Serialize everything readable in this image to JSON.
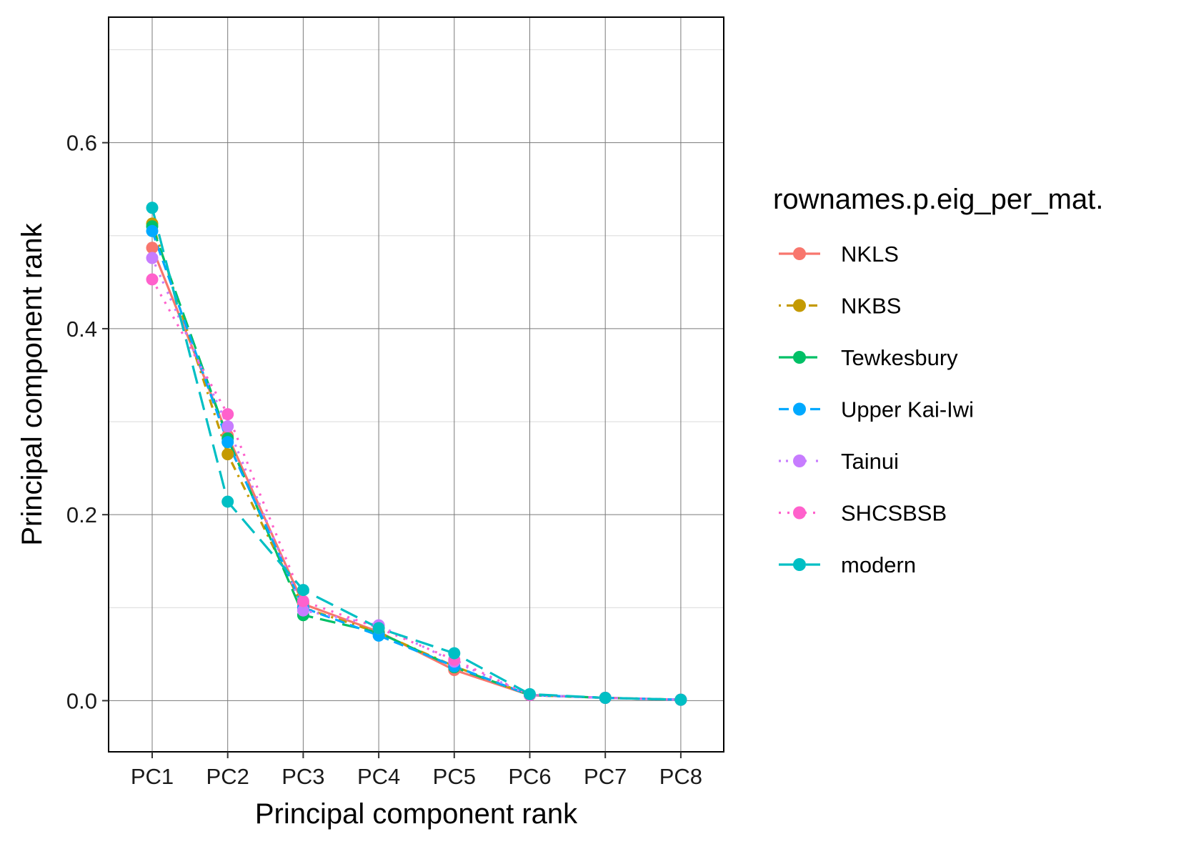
{
  "chart_data": {
    "type": "line",
    "title": "",
    "xlabel": "Principal component rank",
    "ylabel": "Principal component rank",
    "categories": [
      "PC1",
      "PC2",
      "PC3",
      "PC4",
      "PC5",
      "PC6",
      "PC7",
      "PC8"
    ],
    "ylim": [
      -0.055,
      0.735
    ],
    "yticks": [
      0.0,
      0.2,
      0.4,
      0.6
    ],
    "ytick_labels": [
      "0.0",
      "0.2",
      "0.4",
      "0.6"
    ],
    "grid": true,
    "legend": {
      "title": "rownames.p.eig_per_mat.",
      "position": "right"
    },
    "series": [
      {
        "name": "NKLS",
        "color": "#F8766D",
        "dash": "solid",
        "values": [
          0.487,
          0.285,
          0.104,
          0.074,
          0.033,
          0.006,
          0.003,
          0.001
        ]
      },
      {
        "name": "NKBS",
        "color": "#C49A00",
        "dash": "dotdash",
        "values": [
          0.513,
          0.265,
          0.1,
          0.073,
          0.037,
          0.006,
          0.003,
          0.001
        ]
      },
      {
        "name": "Tewkesbury",
        "color": "#00C066",
        "dash": "longdash",
        "values": [
          0.51,
          0.282,
          0.092,
          0.073,
          0.036,
          0.006,
          0.003,
          0.001
        ]
      },
      {
        "name": "Upper Kai-Iwi",
        "color": "#00A9FF",
        "dash": "dashed",
        "values": [
          0.505,
          0.278,
          0.1,
          0.07,
          0.037,
          0.006,
          0.003,
          0.001
        ]
      },
      {
        "name": "Tainui",
        "color": "#C77CFF",
        "dash": "dotted-long",
        "values": [
          0.476,
          0.295,
          0.097,
          0.081,
          0.042,
          0.006,
          0.003,
          0.001
        ]
      },
      {
        "name": "SHCSBSB",
        "color": "#FF61CC",
        "dash": "dotted",
        "values": [
          0.453,
          0.308,
          0.107,
          0.078,
          0.044,
          0.006,
          0.003,
          0.001
        ]
      },
      {
        "name": "modern",
        "color": "#00BFC4",
        "dash": "longdash2",
        "values": [
          0.53,
          0.214,
          0.119,
          0.078,
          0.051,
          0.007,
          0.003,
          0.001
        ]
      }
    ]
  }
}
